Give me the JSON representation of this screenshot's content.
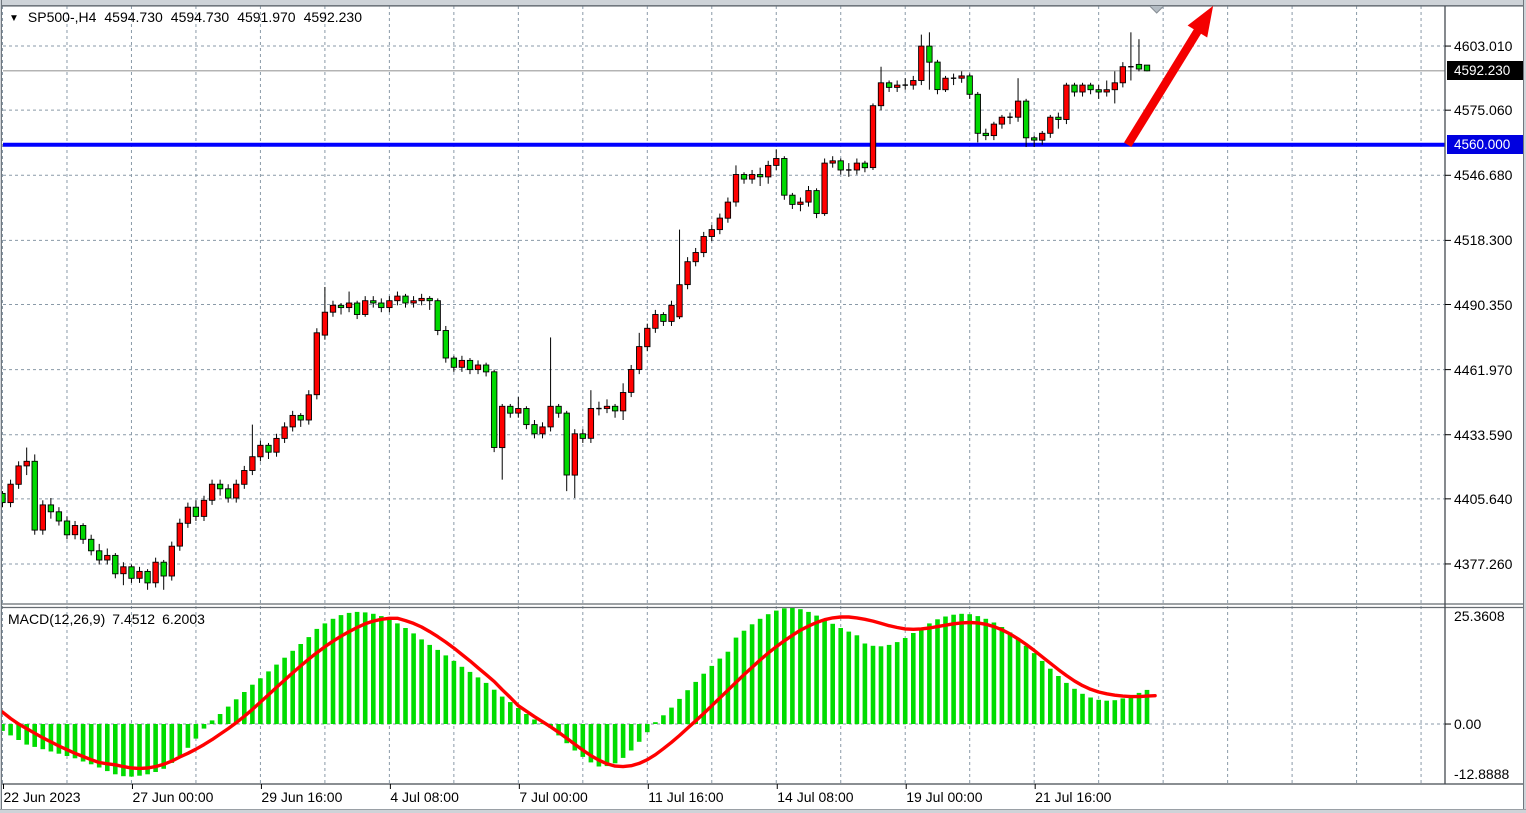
{
  "title": {
    "symbol_period": "SP500-,H4",
    "open": "4594.730",
    "high": "4594.730",
    "low": "4591.970",
    "close": "4592.230"
  },
  "price_axis": {
    "tick_labels": [
      "4603.010",
      "4575.060",
      "4546.680",
      "4518.300",
      "4490.350",
      "4461.970",
      "4433.590",
      "4405.640",
      "4377.260"
    ],
    "tick_values": [
      4603.01,
      4575.06,
      4546.68,
      4518.3,
      4490.35,
      4461.97,
      4433.59,
      4405.64,
      4377.26
    ],
    "current_price_tag": "4592.230",
    "level_tag": "4560.000",
    "visible_max": 4619.6,
    "visible_min": 4359.8
  },
  "time_axis": {
    "ticks": [
      {
        "bar": 0,
        "label": "22 Jun 2023"
      },
      {
        "bar": 16,
        "label": "27 Jun 00:00"
      },
      {
        "bar": 32,
        "label": "29 Jun 16:00"
      },
      {
        "bar": 48,
        "label": "4 Jul 08:00"
      },
      {
        "bar": 64,
        "label": "7 Jul 00:00"
      },
      {
        "bar": 80,
        "label": "11 Jul 16:00"
      },
      {
        "bar": 96,
        "label": "14 Jul 08:00"
      },
      {
        "bar": 112,
        "label": "19 Jul 00:00"
      },
      {
        "bar": 128,
        "label": "21 Jul 16:00"
      }
    ]
  },
  "macd_panel": {
    "indicator_name": "MACD(12,26,9)",
    "macd_value": "7.4512",
    "signal_value": "6.2003",
    "axis_top_label": "25.3608",
    "axis_zero_label": "0.00",
    "axis_bottom_label": "-12.8888",
    "visible_max": 25.3608,
    "visible_min": -12.8888
  },
  "colors": {
    "bull_candle": "#ff0000",
    "bear_candle": "#00d800",
    "candle_outline": "#000000",
    "macd_hist": "#00dc00",
    "macd_signal": "#ff0000",
    "support_line": "#0000ff",
    "current_price_line": "#9b9b9b",
    "grid": "#8a9aa8",
    "arrow": "#f40000",
    "end_marker": "#b4bcc3"
  },
  "chart_data": {
    "type": "candlestick",
    "symbol": "SP500-",
    "timeframe": "H4",
    "candles": [
      [
        4408,
        4409,
        4402,
        4404
      ],
      [
        4404,
        4414,
        4402,
        4412
      ],
      [
        4412,
        4422,
        4410,
        4420
      ],
      [
        4420,
        4428,
        4416,
        4422
      ],
      [
        4422,
        4425,
        4390,
        4392
      ],
      [
        4392,
        4405,
        4390,
        4403
      ],
      [
        4403,
        4406,
        4397,
        4400
      ],
      [
        4400,
        4402,
        4394,
        4396
      ],
      [
        4396,
        4398,
        4388,
        4390
      ],
      [
        4390,
        4396,
        4388,
        4394
      ],
      [
        4394,
        4395,
        4386,
        4388
      ],
      [
        4388,
        4390,
        4381,
        4383
      ],
      [
        4383,
        4386,
        4377,
        4379
      ],
      [
        4379,
        4384,
        4377,
        4381
      ],
      [
        4381,
        4382,
        4371,
        4373
      ],
      [
        4373,
        4378,
        4368,
        4376
      ],
      [
        4376,
        4377,
        4369,
        4371
      ],
      [
        4371,
        4376,
        4369,
        4374
      ],
      [
        4374,
        4375,
        4366,
        4369
      ],
      [
        4369,
        4380,
        4367,
        4378
      ],
      [
        4378,
        4379,
        4366,
        4372
      ],
      [
        4372,
        4387,
        4370,
        4385
      ],
      [
        4385,
        4397,
        4383,
        4395
      ],
      [
        4395,
        4404,
        4393,
        4402
      ],
      [
        4402,
        4405,
        4396,
        4398
      ],
      [
        4398,
        4407,
        4396,
        4405
      ],
      [
        4405,
        4414,
        4403,
        4412
      ],
      [
        4412,
        4414,
        4407,
        4410
      ],
      [
        4410,
        4412,
        4404,
        4406
      ],
      [
        4406,
        4414,
        4404,
        4412
      ],
      [
        4412,
        4420,
        4410,
        4418
      ],
      [
        4418,
        4438,
        4416,
        4424
      ],
      [
        4424,
        4431,
        4422,
        4429
      ],
      [
        4429,
        4430,
        4423,
        4426
      ],
      [
        4426,
        4434,
        4424,
        4432
      ],
      [
        4432,
        4439,
        4430,
        4437
      ],
      [
        4437,
        4444,
        4435,
        4442
      ],
      [
        4442,
        4443,
        4437,
        4440
      ],
      [
        4440,
        4453,
        4438,
        4451
      ],
      [
        4451,
        4480,
        4449,
        4478
      ],
      [
        4477,
        4498,
        4475,
        4487
      ],
      [
        4487,
        4492,
        4485,
        4490
      ],
      [
        4490,
        4491,
        4486,
        4489
      ],
      [
        4489,
        4496,
        4487,
        4491
      ],
      [
        4491,
        4492,
        4484,
        4486
      ],
      [
        4486,
        4494,
        4485,
        4492
      ],
      [
        4492,
        4494,
        4489,
        4491
      ],
      [
        4491,
        4493,
        4487,
        4489
      ],
      [
        4489,
        4494,
        4487,
        4492
      ],
      [
        4492,
        4496,
        4490,
        4494
      ],
      [
        4494,
        4495,
        4489,
        4491
      ],
      [
        4491,
        4494,
        4489,
        4492
      ],
      [
        4492,
        4495,
        4490,
        4493
      ],
      [
        4493,
        4494,
        4488,
        4492
      ],
      [
        4492,
        4493,
        4477,
        4479
      ],
      [
        4479,
        4481,
        4465,
        4467
      ],
      [
        4467,
        4468,
        4461,
        4463
      ],
      [
        4463,
        4468,
        4461,
        4466
      ],
      [
        4466,
        4467,
        4460,
        4462
      ],
      [
        4462,
        4466,
        4460,
        4464
      ],
      [
        4464,
        4465,
        4459,
        4461
      ],
      [
        4461,
        4462,
        4426,
        4428
      ],
      [
        4428,
        4447,
        4414,
        4446
      ],
      [
        4446,
        4447,
        4441,
        4443
      ],
      [
        4443,
        4450,
        4441,
        4445
      ],
      [
        4445,
        4446,
        4436,
        4438
      ],
      [
        4438,
        4440,
        4432,
        4434
      ],
      [
        4434,
        4439,
        4432,
        4437
      ],
      [
        4437,
        4476,
        4435,
        4446
      ],
      [
        4446,
        4447,
        4441,
        4443
      ],
      [
        4443,
        4444,
        4409,
        4416
      ],
      [
        4416,
        4436,
        4406,
        4434
      ],
      [
        4434,
        4436,
        4430,
        4432
      ],
      [
        4432,
        4453,
        4430,
        4445
      ],
      [
        4445,
        4448,
        4442,
        4445
      ],
      [
        4445,
        4449,
        4443,
        4446
      ],
      [
        4446,
        4447,
        4441,
        4444
      ],
      [
        4444,
        4456,
        4440,
        4452
      ],
      [
        4452,
        4464,
        4450,
        4462
      ],
      [
        4462,
        4478,
        4460,
        4472
      ],
      [
        4472,
        4482,
        4470,
        4480
      ],
      [
        4480,
        4488,
        4478,
        4486
      ],
      [
        4486,
        4487,
        4481,
        4483
      ],
      [
        4483,
        4492,
        4481,
        4490
      ],
      [
        4485,
        4523,
        4484,
        4499
      ],
      [
        4499,
        4511,
        4497,
        4509
      ],
      [
        4509,
        4515,
        4507,
        4513
      ],
      [
        4513,
        4522,
        4511,
        4520
      ],
      [
        4520,
        4525,
        4518,
        4523
      ],
      [
        4523,
        4530,
        4521,
        4528
      ],
      [
        4528,
        4537,
        4526,
        4535
      ],
      [
        4535,
        4551,
        4533,
        4547
      ],
      [
        4547,
        4548,
        4543,
        4545
      ],
      [
        4545,
        4549,
        4543,
        4547
      ],
      [
        4547,
        4550,
        4542,
        4546
      ],
      [
        4546,
        4553,
        4543,
        4551
      ],
      [
        4551,
        4558,
        4549,
        4554
      ],
      [
        4554,
        4555,
        4536,
        4538
      ],
      [
        4538,
        4539,
        4532,
        4534
      ],
      [
        4534,
        4537,
        4531,
        4535
      ],
      [
        4535,
        4542,
        4533,
        4540
      ],
      [
        4540,
        4541,
        4528,
        4530
      ],
      [
        4530,
        4554,
        4529,
        4552
      ],
      [
        4552,
        4555,
        4550,
        4553
      ],
      [
        4553,
        4554,
        4547,
        4549
      ],
      [
        4549,
        4552,
        4546,
        4549
      ],
      [
        4549,
        4554,
        4547,
        4552
      ],
      [
        4552,
        4553,
        4548,
        4550
      ],
      [
        4550,
        4578,
        4549,
        4577
      ],
      [
        4577,
        4594,
        4575,
        4587
      ],
      [
        4587,
        4588,
        4583,
        4585
      ],
      [
        4585,
        4588,
        4583,
        4586
      ],
      [
        4586,
        4589,
        4584,
        4586
      ],
      [
        4586,
        4590,
        4584,
        4588
      ],
      [
        4588,
        4608,
        4586,
        4603
      ],
      [
        4603,
        4609,
        4584,
        4596
      ],
      [
        4596,
        4597,
        4582,
        4584
      ],
      [
        4584,
        4590,
        4583,
        4589
      ],
      [
        4589,
        4591,
        4586,
        4589
      ],
      [
        4589,
        4592,
        4587,
        4590
      ],
      [
        4590,
        4591,
        4580,
        4582
      ],
      [
        4582,
        4583,
        4561,
        4565
      ],
      [
        4565,
        4567,
        4562,
        4564
      ],
      [
        4564,
        4570,
        4562,
        4569
      ],
      [
        4569,
        4573,
        4567,
        4572
      ],
      [
        4572,
        4574,
        4569,
        4572
      ],
      [
        4572,
        4589,
        4570,
        4579
      ],
      [
        4579,
        4580,
        4559,
        4563
      ],
      [
        4563,
        4564,
        4559,
        4562
      ],
      [
        4562,
        4566,
        4560,
        4565
      ],
      [
        4565,
        4573,
        4563,
        4572
      ],
      [
        4572,
        4574,
        4567,
        4571
      ],
      [
        4571,
        4587,
        4569,
        4586
      ],
      [
        4586,
        4587,
        4581,
        4583
      ],
      [
        4583,
        4587,
        4581,
        4586
      ],
      [
        4586,
        4587,
        4582,
        4584
      ],
      [
        4584,
        4586,
        4580,
        4583
      ],
      [
        4583,
        4588,
        4581,
        4584
      ],
      [
        4584,
        4592,
        4578,
        4587
      ],
      [
        4587,
        4596,
        4585,
        4594
      ],
      [
        4594,
        4609,
        4588,
        4594
      ],
      [
        4595,
        4606,
        4592,
        4593
      ],
      [
        4594.7,
        4594.7,
        4592,
        4592.2
      ]
    ],
    "macd_hist": [
      -1.5,
      -2.5,
      -3.5,
      -4.5,
      -5,
      -5.5,
      -6,
      -6.5,
      -7,
      -7.5,
      -8.2,
      -8.8,
      -9.5,
      -10.3,
      -11,
      -11.4,
      -11.5,
      -11.3,
      -11,
      -10.5,
      -9.8,
      -8.5,
      -7,
      -5.2,
      -3.2,
      -1,
      0.8,
      2.2,
      3.8,
      5.4,
      7,
      8.6,
      10,
      11.5,
      13,
      14.5,
      16,
      17.5,
      19,
      20.8,
      22,
      23,
      23.8,
      24.3,
      24.5,
      24.4,
      24.1,
      23.6,
      22.9,
      22,
      21,
      19.8,
      18.5,
      17.3,
      16.2,
      15,
      13.8,
      12.5,
      11.4,
      10.2,
      9,
      7.5,
      6,
      4.8,
      3.5,
      2.2,
      1,
      0.2,
      -0.8,
      -2.5,
      -4.2,
      -5.8,
      -7.2,
      -8.4,
      -9.3,
      -9.2,
      -8.6,
      -7.4,
      -5.8,
      -3.9,
      -1.8,
      0.4,
      1.9,
      3.6,
      5.5,
      7.4,
      9.2,
      11,
      12.7,
      14.3,
      15.8,
      18.9,
      20.4,
      21.8,
      23,
      24,
      24.8,
      25.3,
      25.4,
      25.1,
      24.5,
      23.7,
      22.8,
      21.9,
      21,
      20.2,
      19.4,
      17.6,
      17.1,
      17,
      17.3,
      17.9,
      18.8,
      19.9,
      21,
      22,
      22.9,
      23.5,
      23.9,
      24.1,
      24,
      23.6,
      23,
      22.2,
      21.2,
      20,
      18.6,
      17.1,
      15.5,
      13.8,
      12.1,
      10.5,
      9,
      7.7,
      6.6,
      5.8,
      5.3,
      5.1,
      5.2,
      5.6,
      6.2,
      6.8,
      7.45
    ],
    "macd_signal": [
      2.6,
      1.2,
      0,
      -1,
      -2,
      -3,
      -3.9,
      -4.8,
      -5.6,
      -6.4,
      -7.1,
      -7.8,
      -8.4,
      -8.7,
      -8.9,
      -9.3,
      -9.6,
      -9.7,
      -9.6,
      -9.3,
      -8.8,
      -8.1,
      -7.2,
      -6.4,
      -5.5,
      -4.5,
      -3.4,
      -2.2,
      -1,
      0.3,
      1.7,
      3.2,
      4.8,
      6.4,
      8,
      9.6,
      11.2,
      12.7,
      14.2,
      15.6,
      16.9,
      18.1,
      19.2,
      20.2,
      21.1,
      21.9,
      22.5,
      22.9,
      23.1,
      23.1,
      22.6,
      22,
      21.2,
      20.2,
      19.1,
      17.9,
      16.6,
      15.2,
      13.8,
      12.3,
      10.8,
      9.3,
      7.5,
      5.8,
      4,
      2.8,
      1.6,
      0.5,
      -0.6,
      -1.8,
      -3.1,
      -4.4,
      -5.7,
      -6.9,
      -7.9,
      -8.7,
      -9.2,
      -9.3,
      -9.1,
      -8.6,
      -7.8,
      -6.7,
      -5.4,
      -4,
      -2.5,
      -0.9,
      0.7,
      2.3,
      4,
      5.7,
      7.4,
      9.1,
      10.8,
      12.4,
      14,
      15.5,
      16.9,
      18.2,
      19.4,
      20.5,
      21.4,
      22.2,
      22.8,
      23.2,
      23.4,
      23.4,
      23.2,
      22.9,
      22.5,
      22,
      21.5,
      21.1,
      20.8,
      20.7,
      20.8,
      21,
      21.3,
      21.6,
      21.9,
      22.1,
      22.2,
      22.1,
      21.8,
      21.3,
      20.6,
      19.7,
      18.6,
      17.4,
      16.1,
      14.7,
      13.3,
      11.9,
      10.6,
      9.4,
      8.4,
      7.6,
      7,
      6.6,
      6.3,
      6.1,
      6,
      6,
      6.1,
      6.2
    ],
    "annotations": {
      "support_line": {
        "price": 4560,
        "label": "4560.000"
      },
      "current_price_line": {
        "price": 4592.23,
        "label": "4592.230"
      },
      "trend_arrow": {
        "start": {
          "bar": 139.6,
          "price": 4560
        },
        "end": {
          "bar": 150.2,
          "price": 4620.5
        }
      },
      "end_marker": {
        "bar": 143.2
      }
    },
    "grid": {
      "v_step_bars": 8,
      "v_line_count": 23
    }
  }
}
